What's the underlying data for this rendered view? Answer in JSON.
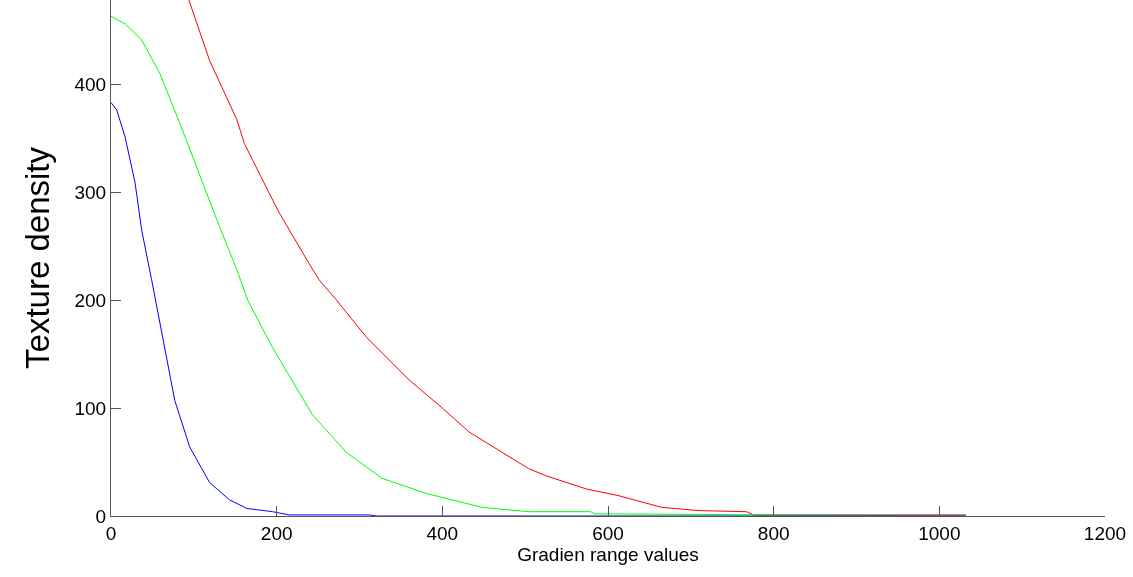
{
  "chart_data": {
    "type": "line",
    "xlabel": "Gradien range values",
    "ylabel": "Texture density",
    "xlim": [
      0,
      1200
    ],
    "xticks": [
      0,
      200,
      400,
      600,
      800,
      1000,
      1200
    ],
    "ylim": [
      0,
      478
    ],
    "yticks": [
      0,
      100,
      200,
      300,
      400
    ],
    "legend": false,
    "marker": "none",
    "line_style": "solid",
    "series": [
      {
        "color": "#ff0000",
        "x": [
          94,
          119,
          152,
          161,
          191,
          203,
          239,
          251,
          270,
          308,
          360,
          400,
          432,
          472,
          504,
          526,
          574,
          612,
          665,
          709,
          767,
          776,
          1032
        ],
        "values": [
          478,
          422,
          367,
          345,
          299,
          281,
          234,
          219,
          202,
          166,
          126,
          100,
          78,
          59,
          44,
          37,
          25,
          19,
          8,
          5,
          4,
          1,
          1
        ]
      },
      {
        "color": "#00ff00",
        "x": [
          0,
          17,
          37,
          59,
          83,
          111,
          128,
          152,
          165,
          195,
          243,
          284,
          327,
          380,
          448,
          504,
          579,
          584,
          813,
          1032
        ],
        "values": [
          463,
          456,
          441,
          410,
          364,
          308,
          274,
          228,
          200,
          156,
          94,
          59,
          35,
          21,
          8,
          4,
          4,
          2,
          1,
          0
        ]
      },
      {
        "color": "#0000ff",
        "x": [
          0,
          7,
          17,
          29,
          37,
          49,
          63,
          77,
          95,
          119,
          143,
          164,
          195,
          215,
          312,
          320,
          1032
        ],
        "values": [
          383,
          376,
          351,
          309,
          265,
          219,
          163,
          107,
          64,
          31,
          15,
          7,
          4,
          1,
          1,
          0,
          0
        ]
      }
    ]
  }
}
